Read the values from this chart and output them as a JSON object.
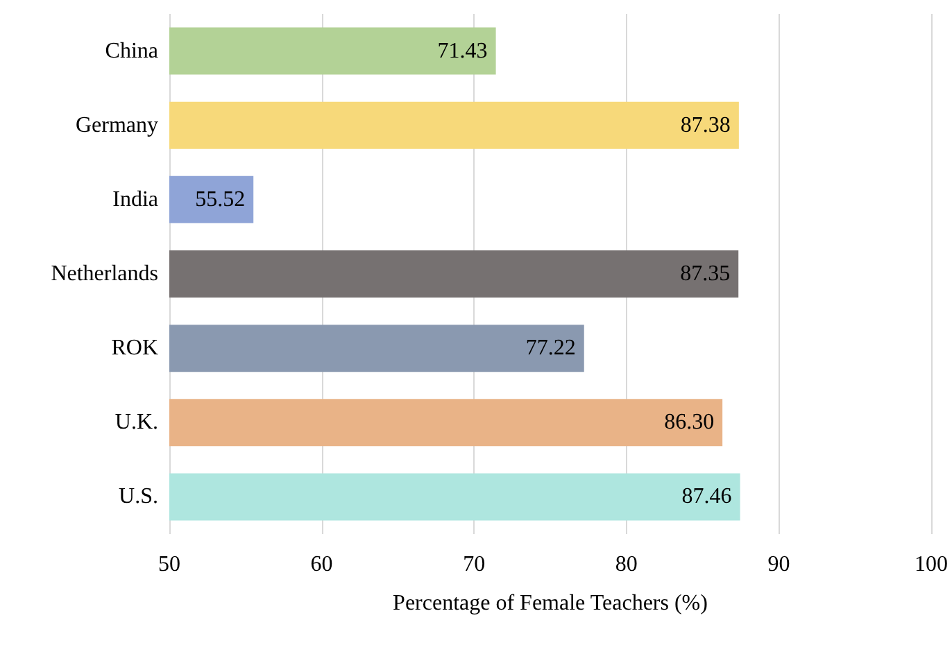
{
  "chart_data": {
    "type": "bar",
    "orientation": "horizontal",
    "xlabel": "Percentage of Female Teachers (%)",
    "categories": [
      "China",
      "Germany",
      "India",
      "Netherlands",
      "ROK",
      "U.K.",
      "U.S."
    ],
    "values": [
      71.43,
      87.38,
      55.52,
      87.35,
      77.22,
      86.3,
      87.46
    ],
    "value_labels": [
      "71.43",
      "87.38",
      "55.52",
      "87.35",
      "77.22",
      "86.30",
      "87.46"
    ],
    "colors": [
      "#b3d296",
      "#f7d97a",
      "#8fa4d7",
      "#767171",
      "#8a99b0",
      "#e9b387",
      "#aee6df"
    ],
    "xlim": [
      50,
      100
    ],
    "xticks": [
      50,
      60,
      70,
      80,
      90,
      100
    ],
    "grid": "x"
  }
}
